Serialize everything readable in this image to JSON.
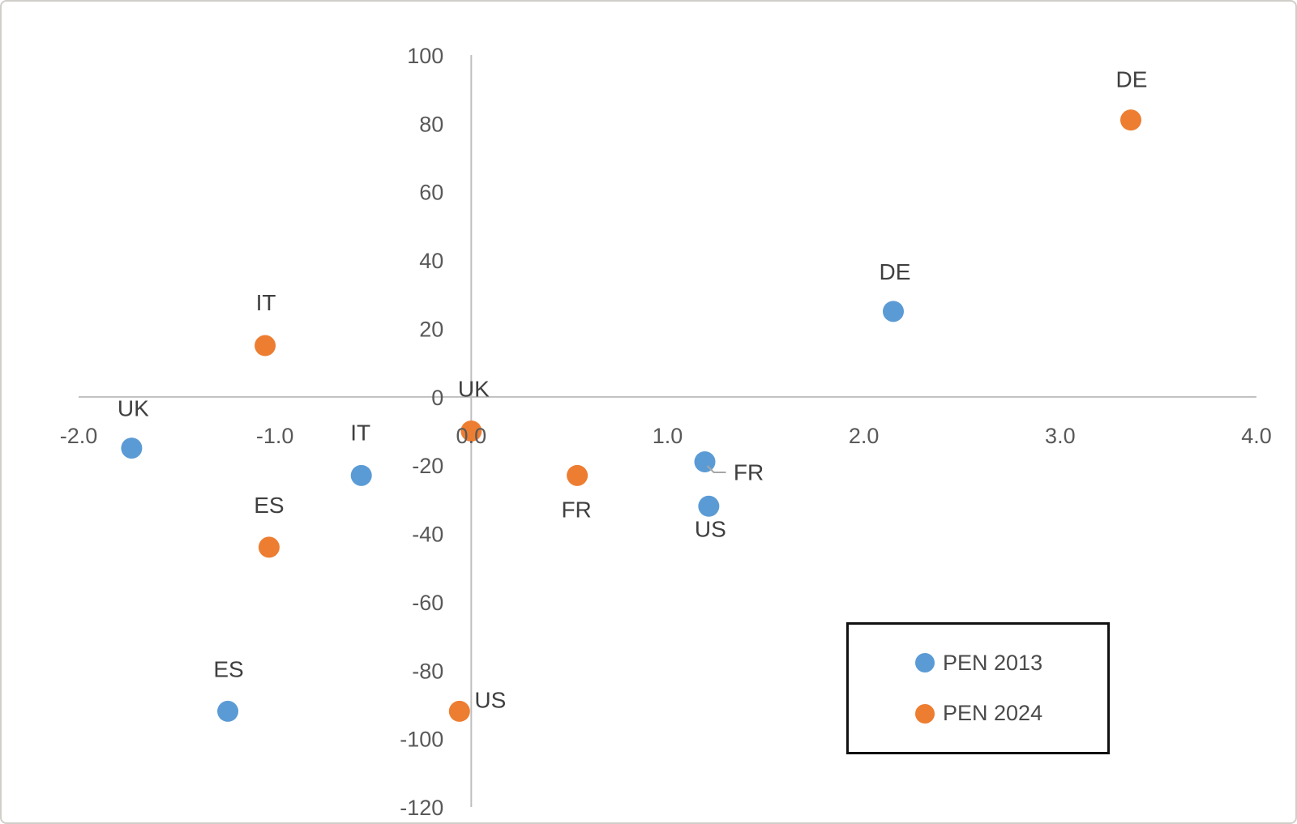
{
  "chart_data": {
    "type": "scatter",
    "title": "",
    "xlabel": "",
    "ylabel": "",
    "xlim": [
      -2.0,
      4.0
    ],
    "ylim": [
      -120,
      100
    ],
    "grid": false,
    "x_ticks": [
      {
        "value": -2.0,
        "label": "-2.0"
      },
      {
        "value": -1.0,
        "label": "-1.0"
      },
      {
        "value": 0.0,
        "label": "0.0"
      },
      {
        "value": 1.0,
        "label": "1.0"
      },
      {
        "value": 2.0,
        "label": "2.0"
      },
      {
        "value": 3.0,
        "label": "3.0"
      },
      {
        "value": 4.0,
        "label": "4.0"
      }
    ],
    "y_ticks": [
      {
        "value": 100,
        "label": "100"
      },
      {
        "value": 80,
        "label": "80"
      },
      {
        "value": 60,
        "label": "60"
      },
      {
        "value": 40,
        "label": "40"
      },
      {
        "value": 20,
        "label": "20"
      },
      {
        "value": 0,
        "label": "0"
      },
      {
        "value": -20,
        "label": "-20"
      },
      {
        "value": -40,
        "label": "-40"
      },
      {
        "value": -60,
        "label": "-60"
      },
      {
        "value": -80,
        "label": "-80"
      },
      {
        "value": -100,
        "label": "-100"
      },
      {
        "value": -120,
        "label": "-120"
      }
    ],
    "series": [
      {
        "name": "PEN 2013",
        "color": "#5B9BD5",
        "points": [
          {
            "label": "UK",
            "x": -1.73,
            "y": -15,
            "label_offset": [
              2,
              -49
            ]
          },
          {
            "label": "IT",
            "x": -0.56,
            "y": -23,
            "label_offset": [
              -1,
              -53
            ]
          },
          {
            "label": "ES",
            "x": -1.24,
            "y": -92,
            "label_offset": [
              1,
              -52
            ]
          },
          {
            "label": "FR",
            "x": 1.19,
            "y": -19,
            "label_offset": [
              54,
              13
            ],
            "leader": true
          },
          {
            "label": "US",
            "x": 1.21,
            "y": -32,
            "label_offset": [
              2,
              28
            ]
          },
          {
            "label": "DE",
            "x": 2.15,
            "y": 25,
            "label_offset": [
              2,
              -49
            ]
          }
        ]
      },
      {
        "name": "PEN 2024",
        "color": "#ED7D31",
        "points": [
          {
            "label": "UK",
            "x": 0.0,
            "y": -10,
            "label_offset": [
              3,
              -52
            ]
          },
          {
            "label": "IT",
            "x": -1.05,
            "y": 15,
            "label_offset": [
              1,
              -53
            ]
          },
          {
            "label": "ES",
            "x": -1.03,
            "y": -44,
            "label_offset": [
              0,
              -52
            ]
          },
          {
            "label": "FR",
            "x": 0.54,
            "y": -23,
            "label_offset": [
              -1,
              42
            ]
          },
          {
            "label": "US",
            "x": -0.06,
            "y": -92,
            "label_offset": [
              38,
              -14
            ]
          },
          {
            "label": "DE",
            "x": 3.36,
            "y": 81,
            "label_offset": [
              1,
              -50
            ]
          }
        ]
      }
    ],
    "legend": {
      "position": "bottom-right",
      "items": [
        "PEN 2013",
        "PEN 2024"
      ]
    },
    "colors": {
      "axis_line": "#BFBFBF",
      "tick_label": "#595959",
      "point_label": "#3F3F3F",
      "leader_line": "#A6A6A6",
      "legend_border": "#111111"
    }
  }
}
